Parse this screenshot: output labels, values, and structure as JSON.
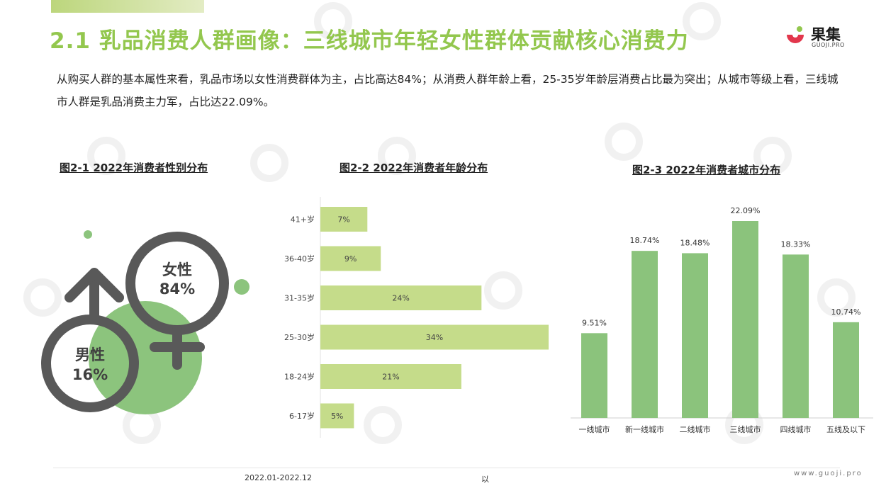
{
  "header": {
    "title": "2.1 乳品消费人群画像：三线城市年轻女性群体贡献核心消费力",
    "logo_cn": "果集",
    "logo_en": "GUOJI.PRO"
  },
  "intro": "从购买人群的基本属性来看，乳品市场以女性消费群体为主，占比高达84%；从消费人群年龄上看，25-35岁年龄层消费占比最为突出；从城市等级上看，三线城市人群是乳品消费主力军，占比达22.09%。",
  "colors": {
    "accent": "#93c74e",
    "bar_light": "#c5dc8a",
    "bar_green": "#8bc37c",
    "circle_green": "#8cc47d",
    "symbol": "#595959"
  },
  "chart_data": [
    {
      "type": "pie",
      "title": "图2-1 2022年消费者性别分布",
      "categories": [
        "女性",
        "男性"
      ],
      "values": [
        84,
        16
      ],
      "value_labels": [
        "84%",
        "16%"
      ]
    },
    {
      "type": "bar",
      "orientation": "horizontal",
      "title": "图2-2 2022年消费者年龄分布",
      "categories": [
        "41+岁",
        "36-40岁",
        "31-35岁",
        "25-30岁",
        "18-24岁",
        "6-17岁"
      ],
      "values": [
        7,
        9,
        24,
        34,
        21,
        5
      ],
      "value_labels": [
        "7%",
        "9%",
        "24%",
        "34%",
        "21%",
        "5%"
      ],
      "xlim": [
        0,
        34
      ]
    },
    {
      "type": "bar",
      "title": "图2-3 2022年消费者城市分布",
      "categories": [
        "一线城市",
        "新一线城市",
        "二线城市",
        "三线城市",
        "四线城市",
        "五线及以下"
      ],
      "values": [
        9.51,
        18.74,
        18.48,
        22.09,
        18.33,
        10.74
      ],
      "value_labels": [
        "9.51%",
        "18.74%",
        "18.48%",
        "22.09%",
        "18.33%",
        "10.74%"
      ],
      "ylim": [
        0,
        22.09
      ]
    }
  ],
  "footer": {
    "date_range": "2022.01-2022.12",
    "note": "以",
    "url": "www.guoji.pro"
  }
}
